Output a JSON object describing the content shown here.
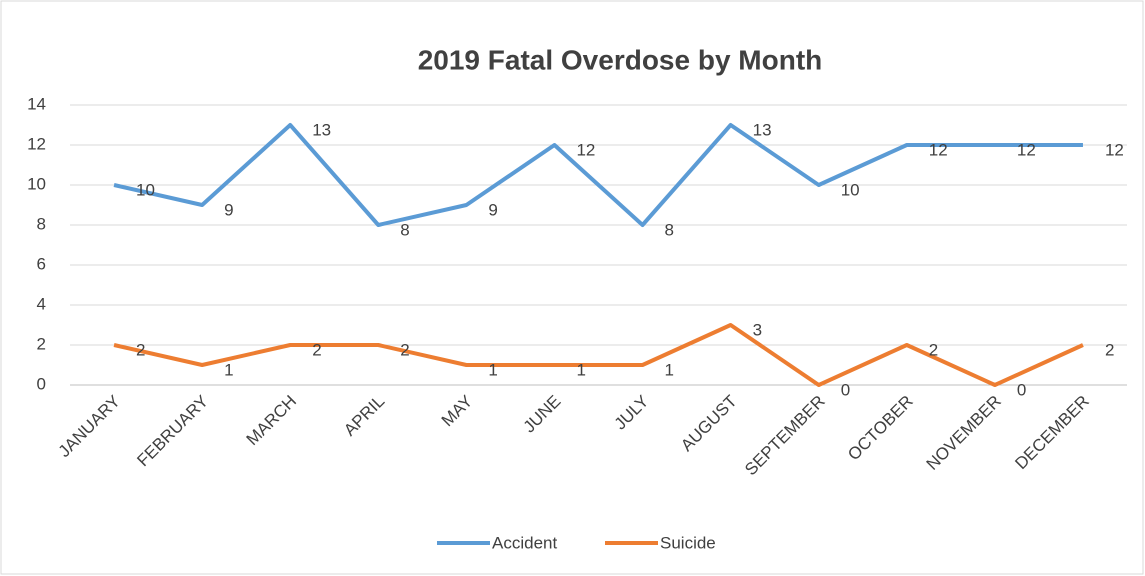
{
  "chart_data": {
    "type": "line",
    "title": "2019 Fatal Overdose by Month",
    "categories": [
      "JANUARY",
      "FEBRUARY",
      "MARCH",
      "APRIL",
      "MAY",
      "JUNE",
      "JULY",
      "AUGUST",
      "SEPTEMBER",
      "OCTOBER",
      "NOVEMBER",
      "DECEMBER"
    ],
    "series": [
      {
        "name": "Accident",
        "color": "#5b9bd5",
        "values": [
          10,
          9,
          13,
          8,
          9,
          12,
          8,
          13,
          10,
          12,
          12,
          12
        ]
      },
      {
        "name": "Suicide",
        "color": "#ed7d31",
        "values": [
          2,
          1,
          2,
          2,
          1,
          1,
          1,
          3,
          0,
          2,
          0,
          2
        ]
      }
    ],
    "ylim": [
      0,
      14
    ],
    "yticks": [
      0,
      2,
      4,
      6,
      8,
      10,
      12,
      14
    ],
    "grid": true,
    "legend": "bottom"
  }
}
